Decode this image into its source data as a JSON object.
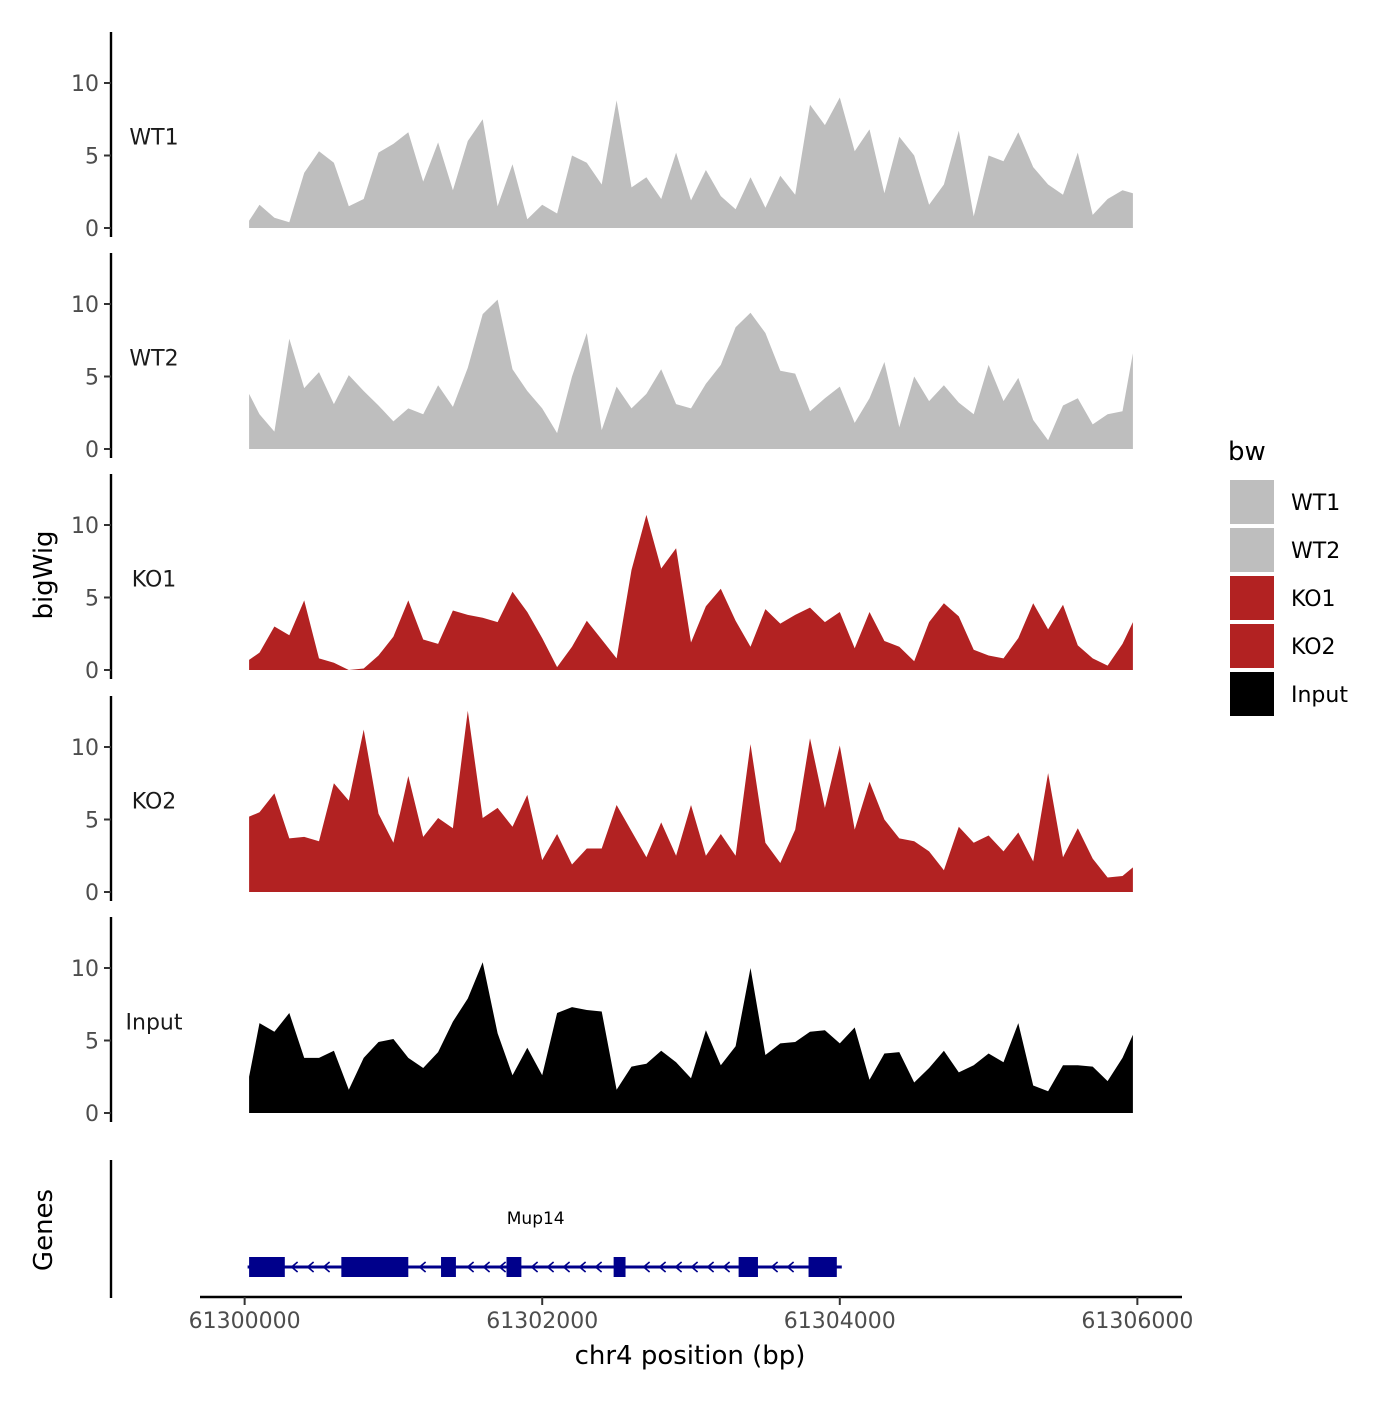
{
  "chart_data": {
    "type": "area",
    "xlabel": "chr4 position (bp)",
    "ylabel": "bigWig",
    "genes_label": "Genes",
    "xlim": [
      61299700,
      61306300
    ],
    "x_ticks": [
      61300000,
      61302000,
      61304000,
      61306000
    ],
    "x_tick_labels": [
      "61300000",
      "61302000",
      "61304000",
      "61306000"
    ],
    "ylim": [
      0,
      14
    ],
    "y_ticks": [
      0,
      5,
      10
    ],
    "y_tick_labels": [
      "0",
      "5",
      "10"
    ],
    "legend": {
      "title": "bw",
      "position": "right",
      "entries": [
        {
          "label": "WT1",
          "color": "#bebebe"
        },
        {
          "label": "WT2",
          "color": "#bebebe"
        },
        {
          "label": "KO1",
          "color": "#b22222"
        },
        {
          "label": "KO2",
          "color": "#b22222"
        },
        {
          "label": "Input",
          "color": "#000000"
        }
      ]
    },
    "x": [
      61300030,
      61300100,
      61300200,
      61300300,
      61300400,
      61300500,
      61300600,
      61300700,
      61300800,
      61300900,
      61301000,
      61301100,
      61301200,
      61301300,
      61301400,
      61301500,
      61301600,
      61301700,
      61301800,
      61301900,
      61302000,
      61302100,
      61302200,
      61302300,
      61302400,
      61302500,
      61302600,
      61302700,
      61302800,
      61302900,
      61303000,
      61303100,
      61303200,
      61303300,
      61303400,
      61303500,
      61303600,
      61303700,
      61303800,
      61303900,
      61304000,
      61304100,
      61304200,
      61304300,
      61304400,
      61304500,
      61304600,
      61304700,
      61304800,
      61304900,
      61305000,
      61305100,
      61305200,
      61305300,
      61305400,
      61305500,
      61305600,
      61305700,
      61305800,
      61305900,
      61305970
    ],
    "series": [
      {
        "name": "WT1",
        "label": "WT1",
        "color": "#bebebe",
        "values": [
          0.5,
          1.6,
          0.7,
          0.4,
          3.8,
          5.3,
          4.5,
          1.5,
          2.0,
          5.2,
          5.8,
          6.6,
          3.2,
          5.9,
          2.6,
          6.0,
          7.5,
          1.5,
          4.4,
          0.6,
          1.6,
          1.0,
          5.0,
          4.5,
          3.0,
          8.8,
          2.8,
          3.5,
          2.0,
          5.2,
          1.9,
          4.0,
          2.2,
          1.3,
          3.5,
          1.4,
          3.6,
          2.3,
          8.5,
          7.1,
          9.0,
          5.3,
          6.8,
          2.4,
          6.3,
          5.0,
          1.6,
          3.0,
          6.7,
          0.8,
          5.0,
          4.6,
          6.6,
          4.2,
          3.0,
          2.3,
          5.2,
          0.9,
          2.0,
          2.6,
          2.4
        ]
      },
      {
        "name": "WT2",
        "label": "WT2",
        "color": "#bebebe",
        "values": [
          3.8,
          2.4,
          1.2,
          7.6,
          4.2,
          5.3,
          3.1,
          5.1,
          4.0,
          3.0,
          1.9,
          2.8,
          2.4,
          4.4,
          2.9,
          5.6,
          9.3,
          10.3,
          5.5,
          4.0,
          2.8,
          1.1,
          5.0,
          8.0,
          1.3,
          4.3,
          2.8,
          3.8,
          5.5,
          3.1,
          2.8,
          4.5,
          5.8,
          8.4,
          9.4,
          8.0,
          5.4,
          5.2,
          2.6,
          3.5,
          4.3,
          1.8,
          3.5,
          6.0,
          1.5,
          5.0,
          3.3,
          4.4,
          3.2,
          2.4,
          5.8,
          3.3,
          4.9,
          2.0,
          0.6,
          3.0,
          3.5,
          1.7,
          2.4,
          2.6,
          6.6
        ]
      },
      {
        "name": "KO1",
        "label": "KO1",
        "color": "#b22222",
        "values": [
          0.7,
          1.2,
          3.0,
          2.4,
          4.8,
          0.8,
          0.5,
          0.0,
          0.1,
          1.0,
          2.3,
          4.8,
          2.1,
          1.8,
          4.1,
          3.8,
          3.6,
          3.3,
          5.4,
          4.0,
          2.2,
          0.2,
          1.6,
          3.4,
          2.1,
          0.8,
          6.9,
          10.7,
          7.0,
          8.4,
          1.9,
          4.4,
          5.6,
          3.4,
          1.6,
          4.2,
          3.2,
          3.8,
          4.3,
          3.3,
          4.0,
          1.5,
          4.0,
          2.0,
          1.6,
          0.6,
          3.3,
          4.6,
          3.7,
          1.4,
          1.0,
          0.8,
          2.2,
          4.6,
          2.8,
          4.5,
          1.7,
          0.8,
          0.3,
          1.8,
          3.3
        ]
      },
      {
        "name": "KO2",
        "label": "KO2",
        "color": "#b22222",
        "values": [
          5.2,
          5.5,
          6.8,
          3.7,
          3.8,
          3.5,
          7.5,
          6.3,
          11.2,
          5.4,
          3.4,
          8.0,
          3.8,
          5.1,
          4.4,
          12.5,
          5.1,
          5.8,
          4.5,
          6.7,
          2.2,
          4.0,
          1.9,
          3.0,
          3.0,
          6.0,
          4.2,
          2.4,
          4.8,
          2.5,
          6.0,
          2.5,
          4.0,
          2.5,
          10.2,
          3.4,
          2.0,
          4.3,
          10.6,
          5.8,
          10.1,
          4.3,
          7.6,
          5.0,
          3.7,
          3.5,
          2.8,
          1.5,
          4.5,
          3.4,
          3.9,
          2.8,
          4.1,
          2.1,
          8.2,
          2.4,
          4.4,
          2.3,
          1.0,
          1.1,
          1.7
        ]
      },
      {
        "name": "Input",
        "label": "Input",
        "color": "#000000",
        "values": [
          2.5,
          6.2,
          5.6,
          6.9,
          3.8,
          3.8,
          4.3,
          1.6,
          3.8,
          4.9,
          5.1,
          3.8,
          3.1,
          4.2,
          6.3,
          7.9,
          10.4,
          5.5,
          2.6,
          4.5,
          2.6,
          6.9,
          7.3,
          7.1,
          7.0,
          1.6,
          3.2,
          3.4,
          4.3,
          3.5,
          2.4,
          5.7,
          3.3,
          4.6,
          10.0,
          4.0,
          4.8,
          4.9,
          5.6,
          5.7,
          4.8,
          5.9,
          2.3,
          4.1,
          4.2,
          2.1,
          3.1,
          4.3,
          2.8,
          3.3,
          4.1,
          3.5,
          6.2,
          1.9,
          1.5,
          3.3,
          3.3,
          3.2,
          2.2,
          3.8,
          5.4
        ]
      }
    ],
    "gene": {
      "name": "Mup14",
      "start": 61300020,
      "end": 61304000,
      "strand": "-",
      "exons": [
        [
          61300030,
          61300270
        ],
        [
          61300650,
          61301100
        ],
        [
          61301320,
          61301420
        ],
        [
          61301760,
          61301860
        ],
        [
          61302480,
          61302560
        ],
        [
          61303320,
          61303450
        ],
        [
          61303790,
          61303980
        ]
      ]
    }
  }
}
